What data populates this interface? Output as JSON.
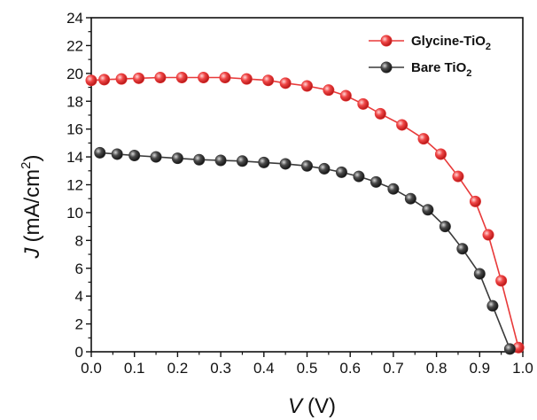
{
  "chart_data": {
    "type": "line",
    "xlabel_var": "V",
    "xlabel_unit": "(V)",
    "ylabel_var": "J",
    "ylabel_unit_pre": "(mA/cm",
    "ylabel_unit_sup": "2",
    "ylabel_unit_post": ")",
    "xlim": [
      0,
      1.0
    ],
    "ylim": [
      0,
      24
    ],
    "xticks": [
      0.0,
      0.1,
      0.2,
      0.3,
      0.4,
      0.5,
      0.6,
      0.7,
      0.8,
      0.9,
      1.0
    ],
    "xtick_labels": [
      "0.0",
      "0.1",
      "0.2",
      "0.3",
      "0.4",
      "0.5",
      "0.6",
      "0.7",
      "0.8",
      "0.9",
      "1.0"
    ],
    "yticks": [
      0,
      2,
      4,
      6,
      8,
      10,
      12,
      14,
      16,
      18,
      20,
      22,
      24
    ],
    "ytick_labels": [
      "0",
      "2",
      "4",
      "6",
      "8",
      "10",
      "12",
      "14",
      "16",
      "18",
      "20",
      "22",
      "24"
    ],
    "grid": false,
    "legend_position": "top-right",
    "series": [
      {
        "name_main": "Glycine-TiO",
        "name_sub": "2",
        "color": "#e83a3a",
        "points": [
          [
            0.0,
            19.5
          ],
          [
            0.03,
            19.55
          ],
          [
            0.07,
            19.6
          ],
          [
            0.11,
            19.65
          ],
          [
            0.16,
            19.7
          ],
          [
            0.21,
            19.7
          ],
          [
            0.26,
            19.7
          ],
          [
            0.31,
            19.7
          ],
          [
            0.36,
            19.6
          ],
          [
            0.41,
            19.5
          ],
          [
            0.45,
            19.3
          ],
          [
            0.5,
            19.1
          ],
          [
            0.55,
            18.8
          ],
          [
            0.59,
            18.4
          ],
          [
            0.63,
            17.8
          ],
          [
            0.67,
            17.1
          ],
          [
            0.72,
            16.3
          ],
          [
            0.77,
            15.3
          ],
          [
            0.81,
            14.2
          ],
          [
            0.85,
            12.6
          ],
          [
            0.89,
            10.8
          ],
          [
            0.92,
            8.4
          ],
          [
            0.95,
            5.1
          ],
          [
            0.99,
            0.3
          ]
        ]
      },
      {
        "name_main": "Bare TiO",
        "name_sub": "2",
        "color": "#3a3a3a",
        "points": [
          [
            0.02,
            14.3
          ],
          [
            0.06,
            14.2
          ],
          [
            0.1,
            14.1
          ],
          [
            0.15,
            14.0
          ],
          [
            0.2,
            13.9
          ],
          [
            0.25,
            13.8
          ],
          [
            0.3,
            13.75
          ],
          [
            0.35,
            13.7
          ],
          [
            0.4,
            13.6
          ],
          [
            0.45,
            13.5
          ],
          [
            0.5,
            13.35
          ],
          [
            0.54,
            13.15
          ],
          [
            0.58,
            12.9
          ],
          [
            0.62,
            12.6
          ],
          [
            0.66,
            12.2
          ],
          [
            0.7,
            11.7
          ],
          [
            0.74,
            11.0
          ],
          [
            0.78,
            10.2
          ],
          [
            0.82,
            9.0
          ],
          [
            0.86,
            7.4
          ],
          [
            0.9,
            5.6
          ],
          [
            0.93,
            3.3
          ],
          [
            0.97,
            0.2
          ]
        ]
      }
    ]
  }
}
